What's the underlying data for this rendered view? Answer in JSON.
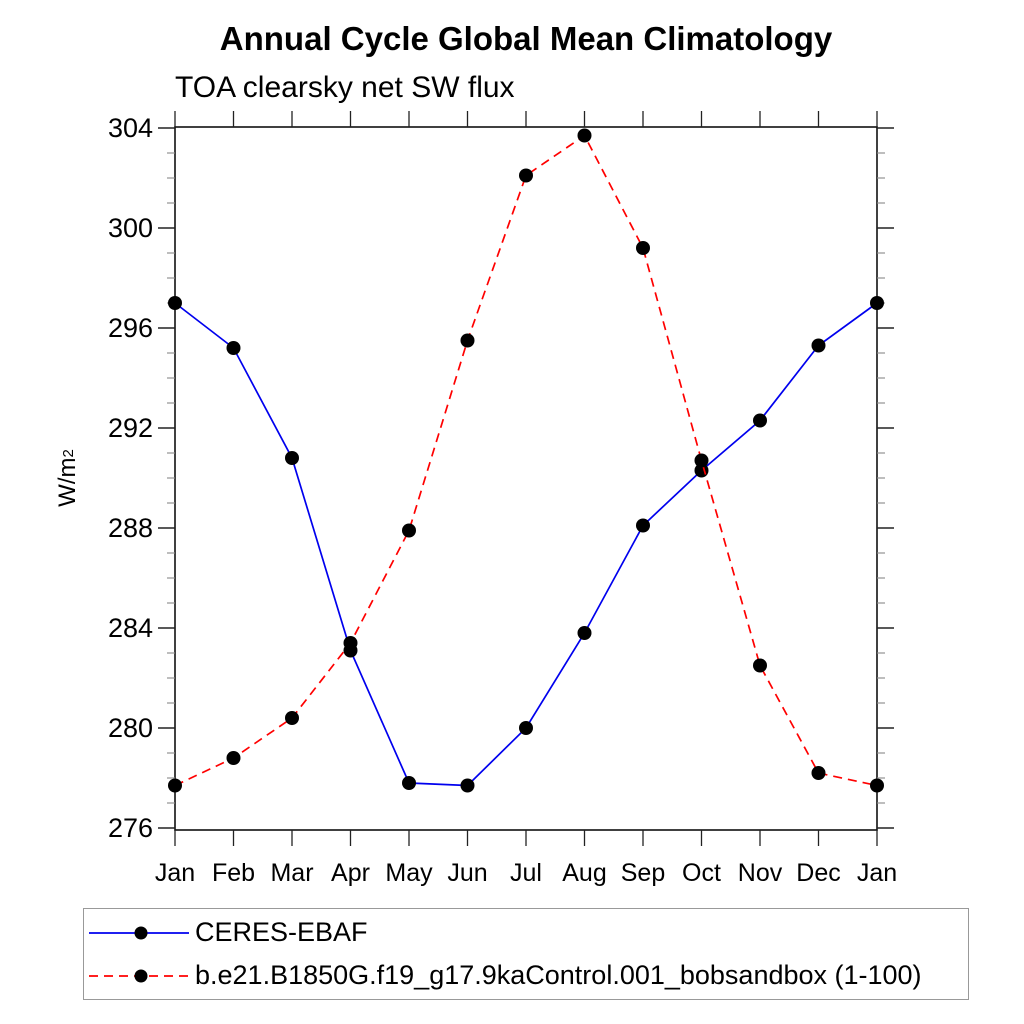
{
  "chart_data": {
    "type": "line",
    "title": "Annual Cycle Global Mean Climatology",
    "subtitle": "TOA clearsky net SW flux",
    "ylabel_main": "W/m",
    "ylabel_sup": "2",
    "categories": [
      "Jan",
      "Feb",
      "Mar",
      "Apr",
      "May",
      "Jun",
      "Jul",
      "Aug",
      "Sep",
      "Oct",
      "Nov",
      "Dec",
      "Jan"
    ],
    "ylim": [
      276,
      304
    ],
    "ytick_major_interval": 4,
    "ytick_minor_interval": 1,
    "ytick_labels": [
      "276",
      "280",
      "284",
      "288",
      "292",
      "296",
      "300",
      "304"
    ],
    "grid": false,
    "legend_position": "bottom",
    "marker": {
      "shape": "filled-circle",
      "color": "#000000"
    },
    "series": [
      {
        "name": "CERES-EBAF",
        "color": "#0000ee",
        "dash": "solid",
        "values": [
          297.0,
          295.2,
          290.8,
          283.1,
          277.8,
          277.7,
          280.0,
          283.8,
          288.1,
          290.3,
          292.3,
          295.3,
          297.0
        ]
      },
      {
        "name": "b.e21.B1850G.f19_g17.9kaControl.001_bobsandbox (1-100)",
        "color": "#ff0000",
        "dash": "dashed",
        "values": [
          277.7,
          278.8,
          280.4,
          283.4,
          287.9,
          295.5,
          302.1,
          303.7,
          299.2,
          290.7,
          282.5,
          278.2,
          277.7
        ]
      }
    ]
  }
}
